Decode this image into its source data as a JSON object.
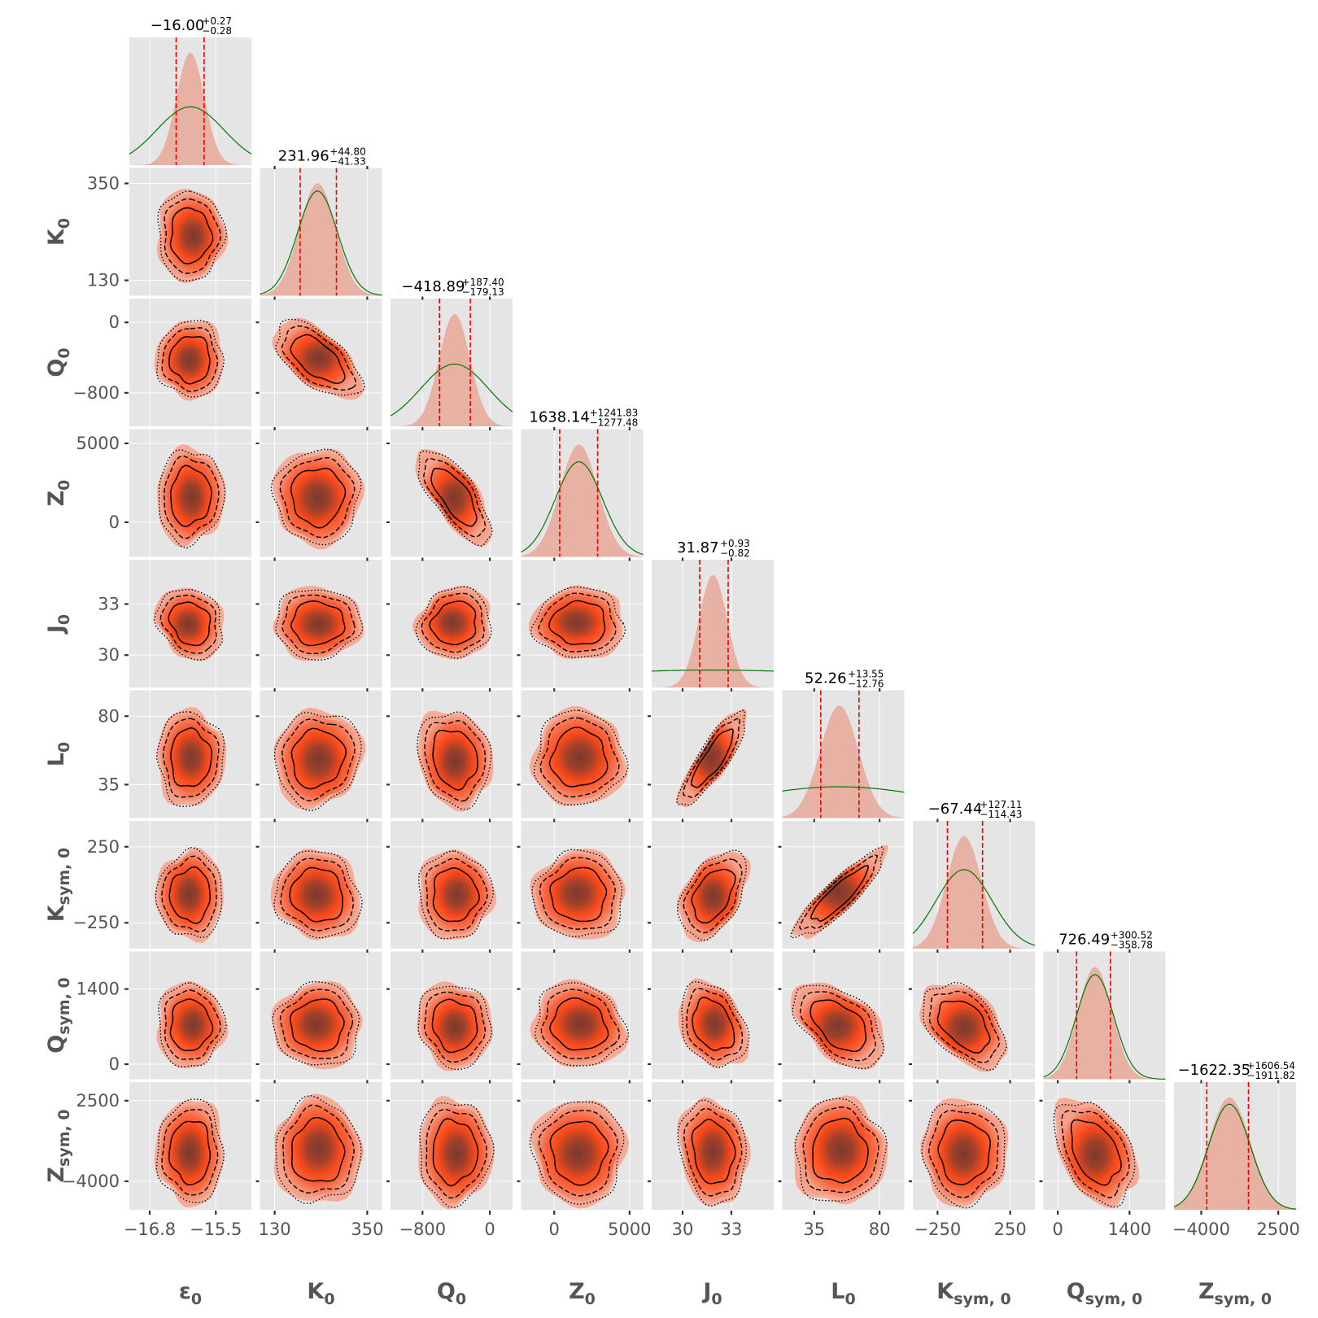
{
  "chart_data": {
    "type": "corner",
    "title": "",
    "params": [
      {
        "key": "e0",
        "label": "ε",
        "sub": "0",
        "ticks": [
          -16.8,
          -15.5
        ],
        "tickLabels": [
          "−16.8",
          "−15.5"
        ],
        "range": [
          -17.2,
          -14.8
        ],
        "median": -16.0,
        "plus": 0.27,
        "minus": 0.28,
        "title": "−16.00",
        "plusLabel": "+0.27",
        "minusLabel": "−0.28",
        "priorWidth": 2.4
      },
      {
        "key": "K0",
        "label": "K",
        "sub": "0",
        "ticks": [
          130,
          350
        ],
        "tickLabels": [
          "130",
          "350"
        ],
        "range": [
          95,
          385
        ],
        "median": 231.96,
        "plus": 44.8,
        "minus": 41.33,
        "title": "231.96",
        "plusLabel": "+44.80",
        "minusLabel": "−41.33",
        "priorWidth": 1.1
      },
      {
        "key": "Q0",
        "label": "Q",
        "sub": "0",
        "ticks": [
          -800,
          0
        ],
        "tickLabels": [
          "−800",
          "0"
        ],
        "range": [
          -1180,
          270
        ],
        "median": -418.89,
        "plus": 187.4,
        "minus": 179.13,
        "title": "−418.89",
        "plusLabel": "+187.40",
        "minusLabel": "−179.13",
        "priorWidth": 2.2
      },
      {
        "key": "Z0",
        "label": "Z",
        "sub": "0",
        "ticks": [
          0,
          5000
        ],
        "tickLabels": [
          "0",
          "5000"
        ],
        "range": [
          -2200,
          5900
        ],
        "median": 1638.14,
        "plus": 1241.83,
        "minus": 1277.48,
        "title": "1638.14",
        "plusLabel": "+1241.83",
        "minusLabel": "−1277.48",
        "priorWidth": 1.25
      },
      {
        "key": "J0",
        "label": "J",
        "sub": "0",
        "ticks": [
          30,
          33
        ],
        "tickLabels": [
          "30",
          "33"
        ],
        "range": [
          28.1,
          35.6
        ],
        "median": 31.87,
        "plus": 0.93,
        "minus": 0.82,
        "title": "31.87",
        "plusLabel": "+0.93",
        "minusLabel": "−0.82",
        "priorWidth": 12
      },
      {
        "key": "L0",
        "label": "L",
        "sub": "0",
        "ticks": [
          35,
          80
        ],
        "tickLabels": [
          "35",
          "80"
        ],
        "range": [
          13,
          97
        ],
        "median": 52.26,
        "plus": 13.55,
        "minus": 12.76,
        "title": "52.26",
        "plusLabel": "+13.55",
        "minusLabel": "−12.76",
        "priorWidth": 5.5
      },
      {
        "key": "Ksym0",
        "label": "K",
        "sub": "sym, 0",
        "ticks": [
          -250,
          250
        ],
        "tickLabels": [
          "−250",
          "250"
        ],
        "range": [
          -420,
          420
        ],
        "median": -67.44,
        "plus": 127.11,
        "minus": 114.43,
        "title": "−67.44",
        "plusLabel": "+127.11",
        "minusLabel": "−114.43",
        "priorWidth": 1.6
      },
      {
        "key": "Qsym0",
        "label": "Q",
        "sub": "sym, 0",
        "ticks": [
          0,
          1400
        ],
        "tickLabels": [
          "0",
          "1400"
        ],
        "range": [
          -280,
          2100
        ],
        "median": 726.49,
        "plus": 300.52,
        "minus": 358.78,
        "title": "726.49",
        "plusLabel": "+300.52",
        "minusLabel": "−358.78",
        "priorWidth": 1.1
      },
      {
        "key": "Zsym0",
        "label": "Z",
        "sub": "sym, 0",
        "ticks": [
          -4000,
          2500
        ],
        "tickLabels": [
          "−4000",
          "2500"
        ],
        "range": [
          -6300,
          4000
        ],
        "median": -1622.35,
        "plus": 1606.54,
        "minus": 1911.82,
        "title": "−1622.35",
        "plusLabel": "+1606.54",
        "minusLabel": "−1911.82",
        "priorWidth": 1.0
      }
    ],
    "correlations": [
      {
        "i": 1,
        "j": 0,
        "rho": 0.0
      },
      {
        "i": 2,
        "j": 0,
        "rho": 0.0
      },
      {
        "i": 2,
        "j": 1,
        "rho": -0.6
      },
      {
        "i": 3,
        "j": 0,
        "rho": 0.05
      },
      {
        "i": 3,
        "j": 1,
        "rho": 0.0
      },
      {
        "i": 3,
        "j": 2,
        "rho": -0.72
      },
      {
        "i": 4,
        "j": 0,
        "rho": -0.2
      },
      {
        "i": 4,
        "j": 1,
        "rho": 0.0
      },
      {
        "i": 4,
        "j": 2,
        "rho": 0.1
      },
      {
        "i": 4,
        "j": 3,
        "rho": 0.0
      },
      {
        "i": 5,
        "j": 0,
        "rho": 0.0
      },
      {
        "i": 5,
        "j": 1,
        "rho": 0.1
      },
      {
        "i": 5,
        "j": 2,
        "rho": -0.15
      },
      {
        "i": 5,
        "j": 3,
        "rho": 0.0
      },
      {
        "i": 5,
        "j": 4,
        "rho": 0.85
      },
      {
        "i": 6,
        "j": 0,
        "rho": 0.0
      },
      {
        "i": 6,
        "j": 1,
        "rho": -0.1
      },
      {
        "i": 6,
        "j": 2,
        "rho": 0.0
      },
      {
        "i": 6,
        "j": 3,
        "rho": 0.0
      },
      {
        "i": 6,
        "j": 4,
        "rho": 0.45
      },
      {
        "i": 6,
        "j": 5,
        "rho": 0.88
      },
      {
        "i": 7,
        "j": 0,
        "rho": 0.0
      },
      {
        "i": 7,
        "j": 1,
        "rho": 0.0
      },
      {
        "i": 7,
        "j": 2,
        "rho": -0.1
      },
      {
        "i": 7,
        "j": 3,
        "rho": -0.1
      },
      {
        "i": 7,
        "j": 4,
        "rho": -0.3
      },
      {
        "i": 7,
        "j": 5,
        "rho": -0.5
      },
      {
        "i": 7,
        "j": 6,
        "rho": -0.45
      },
      {
        "i": 7,
        "j": 7,
        "rho": 0
      },
      {
        "i": 8,
        "j": 0,
        "rho": 0.0
      },
      {
        "i": 8,
        "j": 1,
        "rho": 0.0
      },
      {
        "i": 8,
        "j": 2,
        "rho": 0.0
      },
      {
        "i": 8,
        "j": 3,
        "rho": 0.0
      },
      {
        "i": 8,
        "j": 4,
        "rho": -0.15
      },
      {
        "i": 8,
        "j": 5,
        "rho": 0.0
      },
      {
        "i": 8,
        "j": 6,
        "rho": 0.0
      },
      {
        "i": 8,
        "j": 7,
        "rho": -0.4
      }
    ],
    "contour_levels": [
      "solid",
      "dashed",
      "dotted"
    ],
    "colors": {
      "panel": "#e5e5e5",
      "hist": "#e8a898",
      "prior": "#007700",
      "quantile": "#ee0000",
      "density_low": "#f5a088",
      "density_mid": "#fc4a1a",
      "density_high": "#7a3a2e",
      "contour": "#000000",
      "label": "#555555"
    }
  }
}
